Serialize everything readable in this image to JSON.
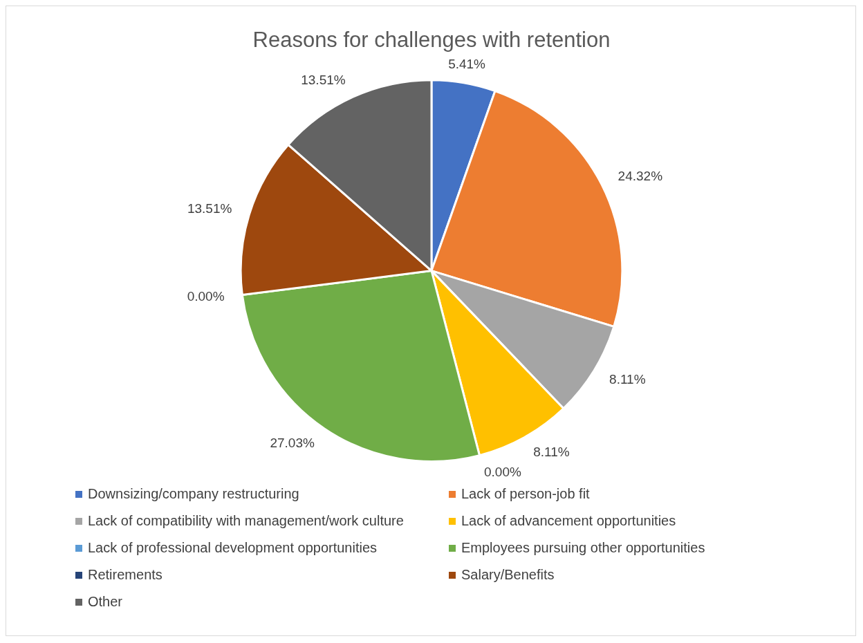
{
  "chart_data": {
    "type": "pie",
    "title": "Reasons for challenges with retention",
    "categories": [
      "Downsizing/company restructuring",
      "Lack of person-job fit",
      "Lack of compatibility with management/work culture",
      "Lack of advancement opportunities",
      "Lack of professional development opportunities",
      "Employees pursuing other opportunities",
      "Retirements",
      "Salary/Benefits",
      "Other"
    ],
    "values": [
      5.41,
      24.32,
      8.11,
      8.11,
      0.0,
      27.03,
      0.0,
      13.51,
      13.51
    ],
    "colors": [
      "#4472c4",
      "#ed7d31",
      "#a5a5a5",
      "#ffc000",
      "#5b9bd5",
      "#70ad47",
      "#264478",
      "#9e480e",
      "#636363"
    ],
    "value_labels": [
      "5.41%",
      "24.32%",
      "8.11%",
      "8.11%",
      "0.00%",
      "27.03%",
      "0.00%",
      "13.51%",
      "13.51%"
    ],
    "legend": "bottom"
  }
}
